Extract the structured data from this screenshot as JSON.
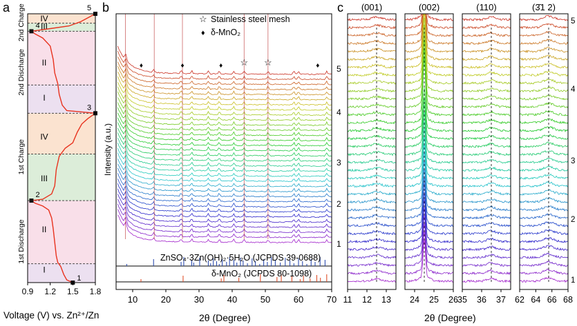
{
  "panels": {
    "a": "a",
    "b": "b",
    "c": "c"
  },
  "chart_data": [
    {
      "panel": "a",
      "type": "line",
      "xlabel": "Voltage (V) vs. Zn²⁺/Zn",
      "xticks": [
        "0.9",
        "1.2",
        "1.5",
        "1.8"
      ],
      "xlim": [
        0.9,
        1.8
      ],
      "stages": [
        {
          "label": "1st Discharge",
          "from": 0.0,
          "to": 0.305
        },
        {
          "label": "1st Charge",
          "from": 0.305,
          "to": 0.63
        },
        {
          "label": "2nd Discharge",
          "from": 0.63,
          "to": 0.935
        },
        {
          "label": "2nd Charge",
          "from": 0.935,
          "to": 1.0
        }
      ],
      "regions": [
        {
          "label": "I",
          "from": 0.0,
          "to": 0.07,
          "color": "#ece0f0"
        },
        {
          "label": "II",
          "from": 0.07,
          "to": 0.305,
          "color": "#f9dfe9"
        },
        {
          "label": "III",
          "from": 0.305,
          "to": 0.478,
          "color": "#dcedd9"
        },
        {
          "label": "IV",
          "from": 0.478,
          "to": 0.63,
          "color": "#fbe3d0"
        },
        {
          "label": "I",
          "from": 0.63,
          "to": 0.735,
          "color": "#ece0f0"
        },
        {
          "label": "II",
          "from": 0.735,
          "to": 0.935,
          "color": "#f9dfe9"
        },
        {
          "label": "III",
          "from": 0.935,
          "to": 0.965,
          "color": "#dcedd9"
        },
        {
          "label": "IV",
          "from": 0.965,
          "to": 1.0,
          "color": "#fbe3d0"
        }
      ],
      "region_labels": [
        {
          "label": "I",
          "pos": 0.05
        },
        {
          "label": "II",
          "pos": 0.2
        },
        {
          "label": "III",
          "pos": 0.39
        },
        {
          "label": "IV",
          "pos": 0.545
        },
        {
          "label": "I",
          "pos": 0.69
        },
        {
          "label": "II",
          "pos": 0.82
        },
        {
          "label": "III",
          "pos": 0.955
        },
        {
          "label": "IV",
          "pos": 0.985
        }
      ],
      "points": [
        {
          "label": "1",
          "v": 1.5,
          "t": 0.0
        },
        {
          "label": "2",
          "v": 0.95,
          "t": 0.305
        },
        {
          "label": "3",
          "v": 1.8,
          "t": 0.63
        },
        {
          "label": "4",
          "v": 0.95,
          "t": 0.935
        },
        {
          "label": "5",
          "v": 1.8,
          "t": 1.0
        }
      ],
      "curve": [
        [
          1.5,
          0.0
        ],
        [
          1.42,
          0.01
        ],
        [
          1.38,
          0.03
        ],
        [
          1.34,
          0.06
        ],
        [
          1.3,
          0.075
        ],
        [
          1.28,
          0.1
        ],
        [
          1.26,
          0.15
        ],
        [
          1.24,
          0.2
        ],
        [
          1.22,
          0.24
        ],
        [
          1.18,
          0.27
        ],
        [
          1.1,
          0.285
        ],
        [
          1.0,
          0.295
        ],
        [
          0.95,
          0.305
        ],
        [
          1.1,
          0.31
        ],
        [
          1.22,
          0.33
        ],
        [
          1.26,
          0.36
        ],
        [
          1.28,
          0.42
        ],
        [
          1.32,
          0.47
        ],
        [
          1.4,
          0.5
        ],
        [
          1.5,
          0.52
        ],
        [
          1.56,
          0.56
        ],
        [
          1.62,
          0.59
        ],
        [
          1.7,
          0.61
        ],
        [
          1.8,
          0.63
        ],
        [
          1.42,
          0.64
        ],
        [
          1.36,
          0.66
        ],
        [
          1.32,
          0.7
        ],
        [
          1.3,
          0.74
        ],
        [
          1.26,
          0.78
        ],
        [
          1.24,
          0.83
        ],
        [
          1.2,
          0.88
        ],
        [
          1.1,
          0.91
        ],
        [
          1.0,
          0.925
        ],
        [
          0.95,
          0.935
        ],
        [
          1.2,
          0.945
        ],
        [
          1.45,
          0.955
        ],
        [
          1.6,
          0.97
        ],
        [
          1.7,
          0.985
        ],
        [
          1.8,
          1.0
        ]
      ]
    },
    {
      "panel": "b",
      "type": "line",
      "xlabel": "2θ (Degree)",
      "ylabel": "Intensity (a.u.)",
      "xlim": [
        5,
        70
      ],
      "xticks": [
        10,
        20,
        30,
        40,
        50,
        60,
        70
      ],
      "n_patterns": 34,
      "stage_markers": [
        "1",
        "2",
        "3",
        "4",
        "5"
      ],
      "substrate_peaks": [
        7.8,
        16.5,
        25.0,
        43.6,
        50.8
      ],
      "zhs_peaks": [
        8.2,
        16.3,
        24.6,
        27.8,
        32.8,
        36.1,
        40.5,
        43.6,
        50.8,
        58.6,
        60.0,
        68.5
      ],
      "legend": [
        {
          "symbol": "☆",
          "label": "Stainless steel mesh",
          "positions": [
            43.6,
            50.8
          ]
        },
        {
          "symbol": "♦",
          "label": "δ-MnO₂",
          "positions": [
            12.6,
            25.0,
            36.6,
            42.5,
            65.8
          ]
        }
      ],
      "references": [
        {
          "label": "ZnSO₄·3Zn(OH)₂·5H₂O (JCPDS 39-0688)",
          "color": "#2f4fb0",
          "lines": [
            8.2,
            16.3,
            24.6,
            25.4,
            27.8,
            28.4,
            30.2,
            32.8,
            33.5,
            34.3,
            35.3,
            36.1,
            37.0,
            38.3,
            39.2,
            40.5,
            41.4,
            42.5,
            43.3,
            44.6,
            46.0,
            47.0,
            48.3,
            49.5,
            50.6,
            51.8,
            53.0,
            54.5,
            56.0,
            57.4,
            58.6,
            60.0,
            61.2,
            62.5,
            63.8,
            65.0,
            66.5,
            68.0
          ]
        },
        {
          "label": "δ-MnO₂ (JCPDS 80-1098)",
          "color": "#e0502a",
          "lines": [
            12.5,
            25.2,
            36.7,
            37.5,
            42.0,
            48.5,
            53.5,
            54.8,
            58.0,
            60.5,
            61.5,
            63.5,
            65.5,
            66.6,
            68.5
          ]
        }
      ]
    },
    {
      "panel": "c",
      "type": "line",
      "xlabel": "2θ (Degree)",
      "subplots": [
        {
          "title": "(001)",
          "xlim": [
            11,
            13.5
          ],
          "xticks": [
            11,
            12,
            13
          ],
          "peak": 12.5
        },
        {
          "title": "(002)",
          "xlim": [
            23.5,
            26
          ],
          "xticks": [
            24,
            25,
            26
          ],
          "peak": 24.5
        },
        {
          "title": "(110)",
          "xlim": [
            35,
            37.5
          ],
          "xticks": [
            35,
            36,
            37
          ],
          "peak": 36.5
        },
        {
          "title": "(3̄1 2)",
          "xlim": [
            62,
            68
          ],
          "xticks": [
            62,
            64,
            66,
            68
          ],
          "peak": 65.6
        }
      ],
      "stage_markers": [
        "1",
        "2",
        "3",
        "4",
        "5"
      ]
    }
  ]
}
